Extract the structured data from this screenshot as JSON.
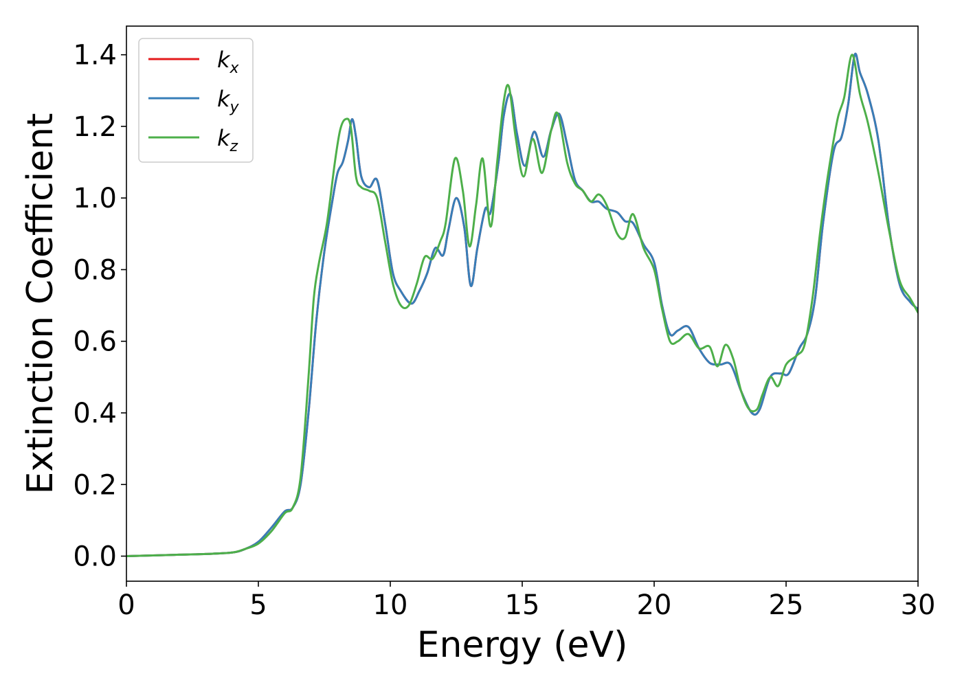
{
  "chart_data": {
    "type": "line",
    "xlabel": "Energy (eV)",
    "ylabel": "Extinction Coefficient",
    "xlim": [
      0,
      30
    ],
    "ylim": [
      -0.07,
      1.48
    ],
    "xticks": [
      0,
      5,
      10,
      15,
      20,
      25,
      30
    ],
    "yticks": [
      0.0,
      0.2,
      0.4,
      0.6,
      0.8,
      1.0,
      1.2,
      1.4
    ],
    "xtick_labels": [
      "0",
      "5",
      "10",
      "15",
      "20",
      "25",
      "30"
    ],
    "ytick_labels": [
      "0.0",
      "0.2",
      "0.4",
      "0.6",
      "0.8",
      "1.0",
      "1.2",
      "1.4"
    ],
    "grid": false,
    "legend_position": "top-left",
    "series": [
      {
        "name": "k_x",
        "base": "k",
        "sub": "x",
        "color": "#e41a1c",
        "x": [
          0,
          1,
          2,
          3,
          4,
          4.5,
          5,
          5.5,
          6,
          6.3,
          6.6,
          6.9,
          7.2,
          7.5,
          7.8,
          8.0,
          8.2,
          8.4,
          8.55,
          8.7,
          8.9,
          9.2,
          9.5,
          9.8,
          10.1,
          10.4,
          10.8,
          11.1,
          11.4,
          11.7,
          12.0,
          12.2,
          12.5,
          12.8,
          13.05,
          13.3,
          13.6,
          13.8,
          14.1,
          14.3,
          14.55,
          14.8,
          15.1,
          15.45,
          15.8,
          16.1,
          16.4,
          16.7,
          17.0,
          17.3,
          17.6,
          17.9,
          18.2,
          18.6,
          18.9,
          19.2,
          19.6,
          20.0,
          20.3,
          20.6,
          20.9,
          21.3,
          21.7,
          22.1,
          22.5,
          22.9,
          23.3,
          23.7,
          24.0,
          24.4,
          24.8,
          25.1,
          25.5,
          25.8,
          26.1,
          26.4,
          26.8,
          27.1,
          27.35,
          27.6,
          27.8,
          28.1,
          28.5,
          28.9,
          29.3,
          29.7,
          30.0
        ],
        "y": [
          0.0,
          0.002,
          0.004,
          0.006,
          0.01,
          0.02,
          0.04,
          0.08,
          0.125,
          0.135,
          0.2,
          0.4,
          0.66,
          0.85,
          0.99,
          1.07,
          1.1,
          1.16,
          1.22,
          1.17,
          1.06,
          1.03,
          1.05,
          0.93,
          0.79,
          0.74,
          0.705,
          0.74,
          0.79,
          0.86,
          0.84,
          0.91,
          1.0,
          0.92,
          0.755,
          0.86,
          0.97,
          0.96,
          1.1,
          1.23,
          1.29,
          1.18,
          1.09,
          1.185,
          1.115,
          1.19,
          1.235,
          1.15,
          1.05,
          1.02,
          0.99,
          0.99,
          0.97,
          0.96,
          0.935,
          0.93,
          0.87,
          0.82,
          0.7,
          0.62,
          0.63,
          0.64,
          0.58,
          0.54,
          0.535,
          0.535,
          0.46,
          0.4,
          0.41,
          0.5,
          0.51,
          0.51,
          0.58,
          0.62,
          0.72,
          0.93,
          1.13,
          1.17,
          1.26,
          1.4,
          1.35,
          1.29,
          1.16,
          0.92,
          0.76,
          0.71,
          0.69
        ]
      },
      {
        "name": "k_y",
        "base": "k",
        "sub": "y",
        "color": "#377eb8",
        "x": [
          0,
          1,
          2,
          3,
          4,
          4.5,
          5,
          5.5,
          6,
          6.3,
          6.6,
          6.9,
          7.2,
          7.5,
          7.8,
          8.0,
          8.2,
          8.4,
          8.55,
          8.7,
          8.9,
          9.2,
          9.5,
          9.8,
          10.1,
          10.4,
          10.8,
          11.1,
          11.4,
          11.7,
          12.0,
          12.2,
          12.5,
          12.8,
          13.05,
          13.3,
          13.6,
          13.8,
          14.1,
          14.3,
          14.55,
          14.8,
          15.1,
          15.45,
          15.8,
          16.1,
          16.4,
          16.7,
          17.0,
          17.3,
          17.6,
          17.9,
          18.2,
          18.6,
          18.9,
          19.2,
          19.6,
          20.0,
          20.3,
          20.6,
          20.9,
          21.3,
          21.7,
          22.1,
          22.5,
          22.9,
          23.3,
          23.7,
          24.0,
          24.4,
          24.8,
          25.1,
          25.5,
          25.8,
          26.1,
          26.4,
          26.8,
          27.1,
          27.35,
          27.6,
          27.8,
          28.1,
          28.5,
          28.9,
          29.3,
          29.7,
          30.0
        ],
        "y": [
          0.0,
          0.002,
          0.004,
          0.006,
          0.01,
          0.02,
          0.04,
          0.08,
          0.125,
          0.135,
          0.2,
          0.4,
          0.66,
          0.85,
          0.99,
          1.07,
          1.1,
          1.16,
          1.22,
          1.17,
          1.06,
          1.03,
          1.05,
          0.93,
          0.79,
          0.74,
          0.705,
          0.74,
          0.79,
          0.86,
          0.84,
          0.91,
          1.0,
          0.92,
          0.755,
          0.86,
          0.97,
          0.96,
          1.1,
          1.23,
          1.29,
          1.18,
          1.09,
          1.185,
          1.115,
          1.19,
          1.235,
          1.15,
          1.05,
          1.02,
          0.99,
          0.99,
          0.97,
          0.96,
          0.935,
          0.93,
          0.87,
          0.82,
          0.7,
          0.62,
          0.63,
          0.64,
          0.58,
          0.54,
          0.535,
          0.535,
          0.46,
          0.4,
          0.41,
          0.5,
          0.51,
          0.51,
          0.58,
          0.62,
          0.72,
          0.93,
          1.13,
          1.17,
          1.26,
          1.4,
          1.35,
          1.29,
          1.16,
          0.92,
          0.76,
          0.71,
          0.69
        ]
      },
      {
        "name": "k_z",
        "base": "k",
        "sub": "z",
        "color": "#4daf4a",
        "x": [
          0,
          1,
          2,
          3,
          4,
          4.5,
          5,
          5.5,
          6,
          6.3,
          6.6,
          6.9,
          7.1,
          7.3,
          7.6,
          7.9,
          8.1,
          8.3,
          8.5,
          8.7,
          8.9,
          9.2,
          9.5,
          9.8,
          10.1,
          10.4,
          10.7,
          11.0,
          11.3,
          11.6,
          11.9,
          12.1,
          12.45,
          12.75,
          13.0,
          13.25,
          13.5,
          13.8,
          14.05,
          14.3,
          14.5,
          14.75,
          15.05,
          15.4,
          15.75,
          16.1,
          16.35,
          16.7,
          17.0,
          17.3,
          17.6,
          17.9,
          18.2,
          18.6,
          18.9,
          19.2,
          19.6,
          20.0,
          20.3,
          20.6,
          20.9,
          21.3,
          21.7,
          22.1,
          22.4,
          22.7,
          23.0,
          23.3,
          23.6,
          23.9,
          24.1,
          24.4,
          24.7,
          25.0,
          25.4,
          25.7,
          26.0,
          26.3,
          26.6,
          26.95,
          27.2,
          27.5,
          27.8,
          28.1,
          28.5,
          28.9,
          29.3,
          29.7,
          30.0
        ],
        "y": [
          0.0,
          0.002,
          0.004,
          0.006,
          0.01,
          0.02,
          0.035,
          0.07,
          0.12,
          0.135,
          0.22,
          0.5,
          0.72,
          0.82,
          0.93,
          1.1,
          1.19,
          1.22,
          1.2,
          1.06,
          1.03,
          1.02,
          1.0,
          0.88,
          0.76,
          0.7,
          0.7,
          0.76,
          0.835,
          0.83,
          0.88,
          0.93,
          1.11,
          1.02,
          0.865,
          0.98,
          1.11,
          0.92,
          1.1,
          1.27,
          1.31,
          1.17,
          1.06,
          1.165,
          1.07,
          1.19,
          1.235,
          1.1,
          1.04,
          1.02,
          0.99,
          1.01,
          0.98,
          0.9,
          0.89,
          0.955,
          0.86,
          0.8,
          0.69,
          0.6,
          0.6,
          0.62,
          0.58,
          0.585,
          0.53,
          0.59,
          0.55,
          0.46,
          0.41,
          0.41,
          0.45,
          0.5,
          0.475,
          0.535,
          0.56,
          0.59,
          0.72,
          0.91,
          1.07,
          1.22,
          1.28,
          1.4,
          1.29,
          1.21,
          1.07,
          0.91,
          0.77,
          0.72,
          0.68
        ]
      }
    ]
  }
}
